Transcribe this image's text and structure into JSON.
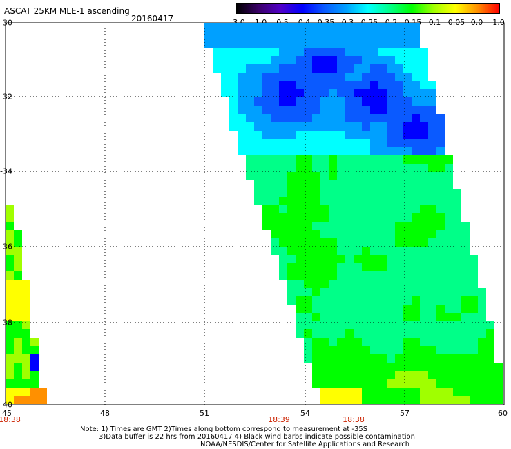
{
  "header": {
    "title": "ASCAT 25KM MLE-1 ascending",
    "date": "20160417"
  },
  "colorbar": {
    "tick_labels": [
      "-3.0",
      "-1.0",
      "-0.5",
      "-0.4",
      "-0.35",
      "-0.3",
      "-0.25",
      "-0.2",
      "-0.15",
      "-0.1",
      "-0.05",
      "0.0",
      "1.0"
    ],
    "colors": [
      "#000000",
      "#3a0068",
      "#5000c8",
      "#0000ff",
      "#0a5aff",
      "#00a0ff",
      "#00ffff",
      "#00ff88",
      "#00ff00",
      "#a0ff00",
      "#ffff00",
      "#ff9000",
      "#ff0000"
    ]
  },
  "map": {
    "lat_labels": [
      "-30",
      "-32",
      "-34",
      "-36",
      "-38",
      "-40"
    ],
    "lon_labels": [
      "45",
      "48",
      "51",
      "54",
      "57",
      "60"
    ],
    "time_labels": [
      "18:38",
      "18:39",
      "18:38"
    ],
    "lat_range": [
      -40,
      -30
    ],
    "lon_range": [
      45,
      60
    ],
    "grid": true
  },
  "notes": {
    "line1": "Note: 1) Times are GMT 2)Times along bottom correspond to measurement at -35S",
    "line2": "3)Data buffer is 22 hrs from 20160417 4) Black wind barbs indicate possible contamination",
    "line3": "NOAA/NESDIS/Center for Satellite Applications and Research"
  }
}
